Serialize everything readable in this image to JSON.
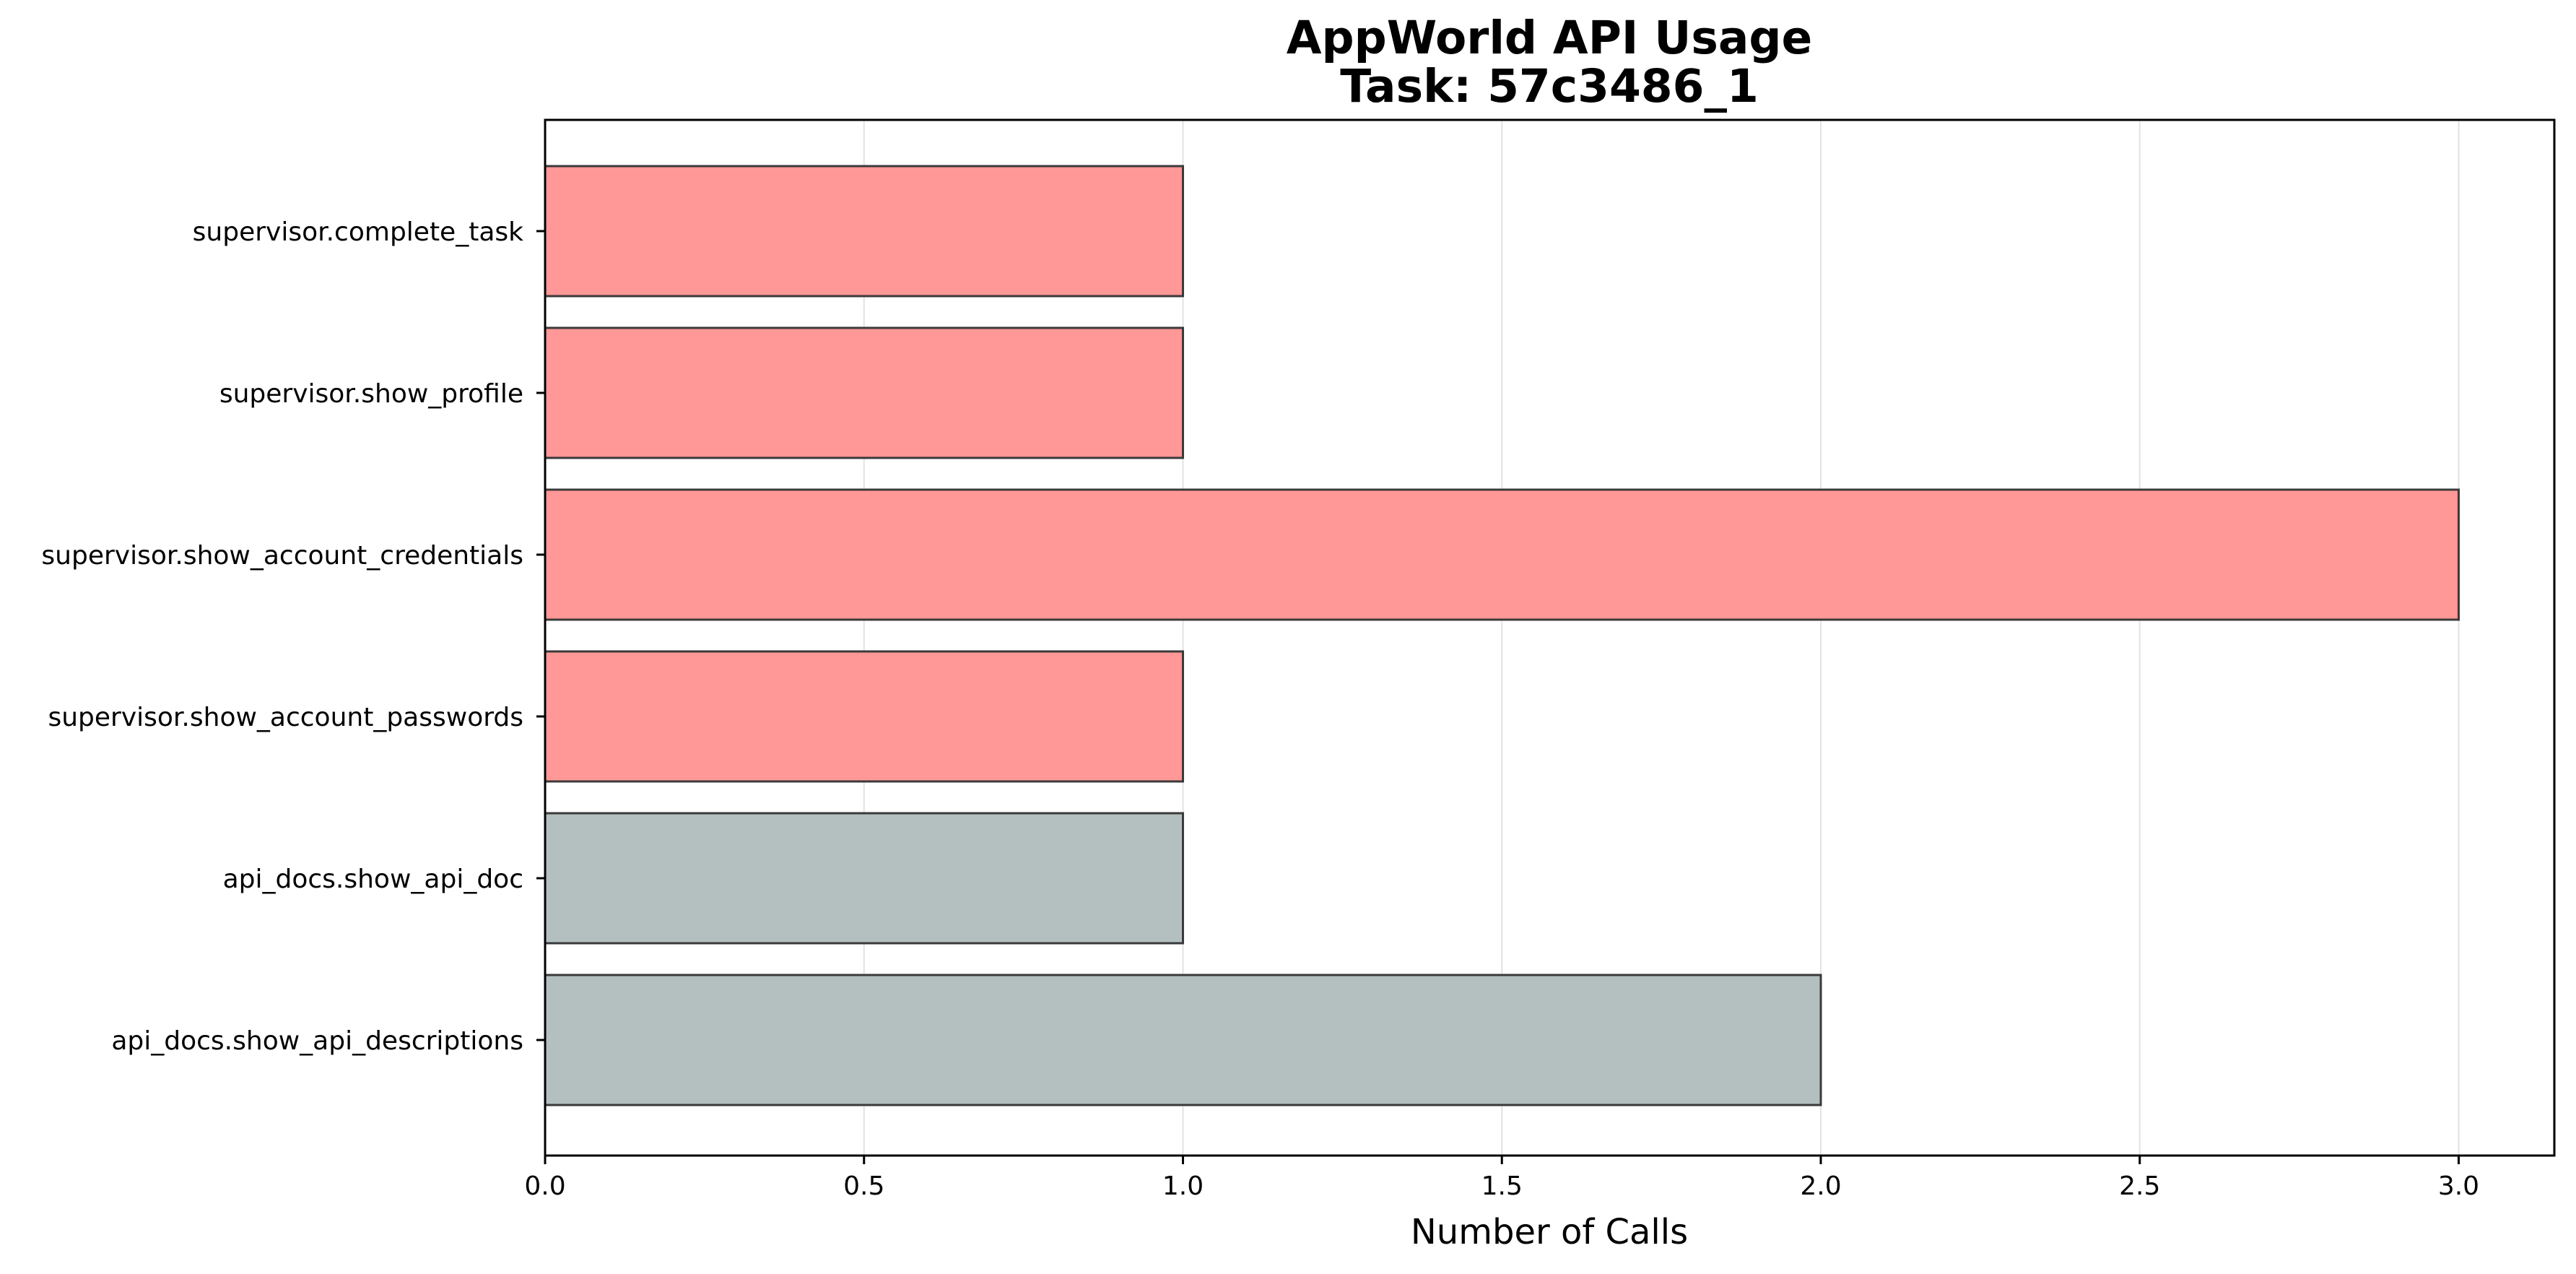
{
  "chart_data": {
    "type": "bar",
    "orientation": "horizontal",
    "title": "AppWorld API Usage",
    "subtitle": "Task: 57c3486_1",
    "xlabel": "Number of Calls",
    "ylabel": "",
    "xlim": [
      0,
      3.15
    ],
    "xticks": [
      "0.0",
      "0.5",
      "1.0",
      "1.5",
      "2.0",
      "2.5",
      "3.0"
    ],
    "grid": "x",
    "categories": [
      "supervisor.complete_task",
      "supervisor.show_profile",
      "supervisor.show_account_credentials",
      "supervisor.show_account_passwords",
      "api_docs.show_api_doc",
      "api_docs.show_api_descriptions"
    ],
    "values": [
      1,
      1,
      3,
      1,
      1,
      2
    ],
    "colors": [
      "#ff9896",
      "#ff9896",
      "#ff9896",
      "#ff9896",
      "#b4c0c0",
      "#b4c0c0"
    ],
    "edge_color": "#3a3a3a",
    "grid_color": "#e3e3e3"
  }
}
